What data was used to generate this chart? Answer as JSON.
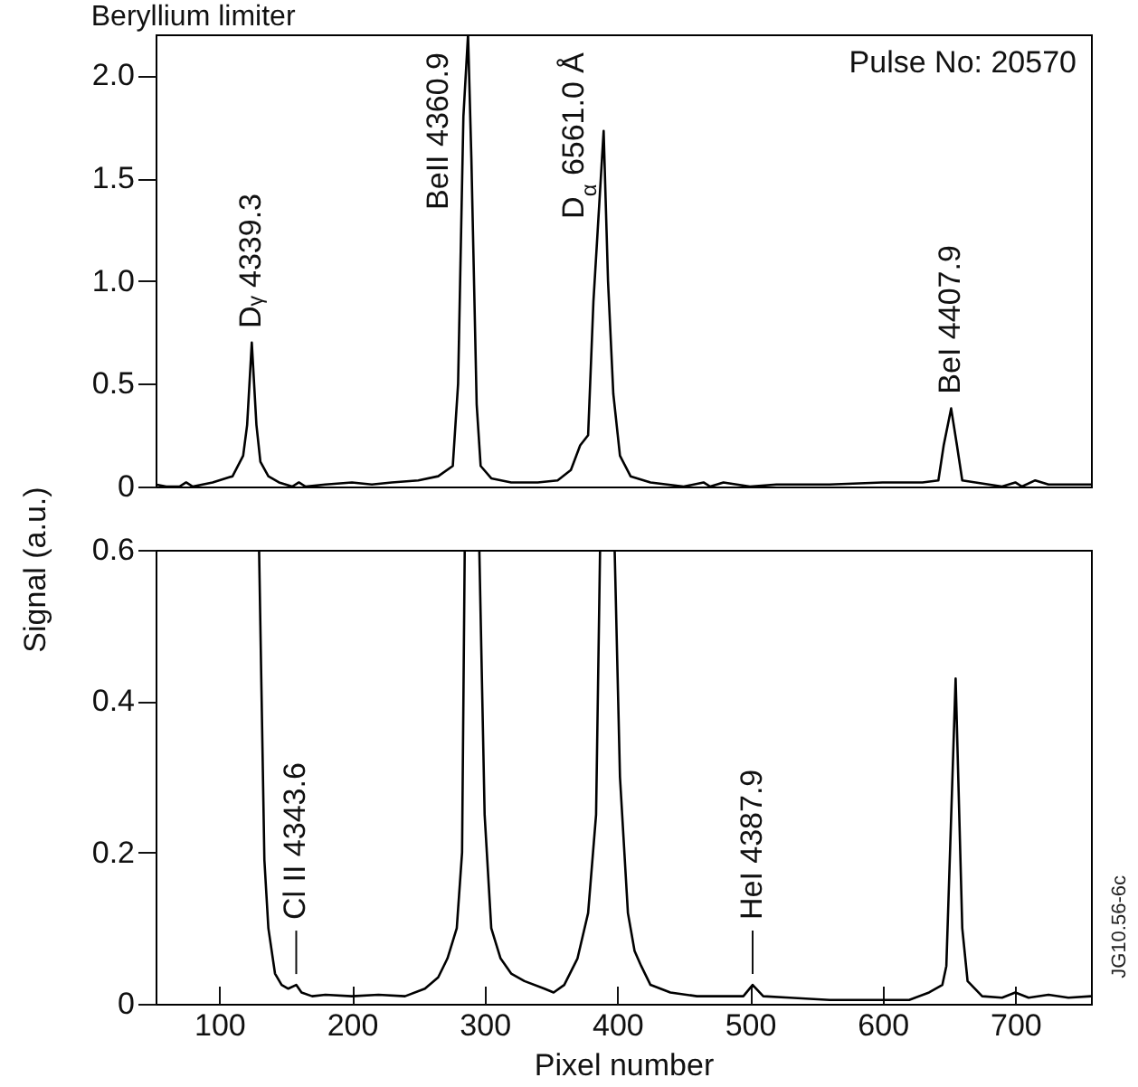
{
  "chart_data": [
    {
      "type": "line",
      "title": "Beryllium limiter",
      "ylabel": "Signal (a.u.)",
      "xlim": [
        52,
        757
      ],
      "ylim": [
        0,
        2.2
      ],
      "yticks": [
        0,
        0.5,
        {
          "value": 1,
          "label": "1.0"
        },
        1.5,
        {
          "value": 2,
          "label": "2.0"
        }
      ],
      "tick_labels": "y",
      "grid": false,
      "series": [
        {
          "color": "#000000",
          "x": [
            52,
            60,
            70,
            75,
            80,
            95,
            110,
            118,
            121,
            124.5,
            128,
            131,
            137,
            145,
            155,
            160,
            165,
            180,
            200,
            215,
            230,
            250,
            265,
            276,
            280,
            284,
            287.5,
            290,
            294,
            297,
            305,
            320,
            340,
            355,
            365,
            372,
            378,
            382,
            389.7,
            393,
            397,
            402,
            410,
            425,
            450,
            465,
            470,
            480,
            500,
            520,
            560,
            600,
            630,
            642,
            646,
            651.6,
            656,
            660,
            670,
            690,
            700,
            705,
            715,
            725,
            740,
            757
          ],
          "values": [
            0.01,
            0.0,
            0.0,
            0.02,
            0.0,
            0.02,
            0.05,
            0.15,
            0.3,
            0.7,
            0.3,
            0.12,
            0.05,
            0.02,
            0.0,
            0.02,
            0.0,
            0.01,
            0.02,
            0.01,
            0.02,
            0.03,
            0.05,
            0.1,
            0.5,
            1.8,
            2.2,
            1.6,
            0.4,
            0.1,
            0.04,
            0.02,
            0.02,
            0.03,
            0.08,
            0.2,
            0.25,
            0.9,
            1.73,
            1.0,
            0.45,
            0.15,
            0.05,
            0.02,
            0.0,
            0.02,
            0.0,
            0.02,
            0.0,
            0.01,
            0.01,
            0.02,
            0.02,
            0.03,
            0.2,
            0.38,
            0.2,
            0.03,
            0.02,
            0.0,
            0.02,
            0.0,
            0.03,
            0.01,
            0.01,
            0.01
          ]
        }
      ],
      "annotations": [
        "Pulse No: 20570",
        {
          "text": "Dᵧ 4339.3",
          "x": 124.5,
          "y": 0.7
        },
        {
          "text": "BeII 4360.9",
          "x": 287.5,
          "y": 2.2
        },
        {
          "text": "D$_{α}$ 6561.0 Å",
          "x": 389.7,
          "y": 1.73
        },
        {
          "text": "BeI 4407.9",
          "x": 651.6,
          "y": 0.38
        }
      ]
    },
    {
      "type": "line",
      "xlabel": "Pixel number",
      "xlim": [
        52,
        757
      ],
      "ylim": [
        0,
        0.6
      ],
      "xticks": [
        100,
        200,
        300,
        400,
        500,
        600,
        700
      ],
      "yticks": [
        0,
        0.2,
        0.4,
        0.6
      ],
      "grid": false,
      "series": [
        {
          "color": "#000000",
          "x": [
            130,
            134,
            137,
            142,
            147,
            152,
            158,
            162,
            170,
            180,
            200,
            220,
            240,
            255,
            265,
            272,
            279,
            283,
            285,
            290,
            296,
            300,
            305,
            312,
            320,
            330,
            345,
            352,
            360,
            370,
            378,
            384,
            387,
            392,
            398,
            402,
            408,
            413,
            418,
            425,
            440,
            460,
            480,
            495,
            502,
            510,
            530,
            560,
            590,
            620,
            635,
            645,
            648,
            655,
            660,
            664,
            675,
            690,
            700,
            710,
            725,
            740,
            757
          ],
          "values": [
            0.6,
            0.19,
            0.1,
            0.04,
            0.025,
            0.02,
            0.025,
            0.015,
            0.01,
            0.012,
            0.01,
            0.012,
            0.01,
            0.02,
            0.035,
            0.06,
            0.1,
            0.2,
            0.6,
            null,
            0.6,
            0.25,
            0.1,
            0.06,
            0.04,
            0.03,
            0.02,
            0.015,
            0.025,
            0.06,
            0.12,
            0.25,
            0.6,
            null,
            0.6,
            0.3,
            0.12,
            0.07,
            0.05,
            0.025,
            0.015,
            0.01,
            0.01,
            0.01,
            0.025,
            0.01,
            0.008,
            0.005,
            0.005,
            0.005,
            0.015,
            0.025,
            0.05,
            0.43,
            0.1,
            0.03,
            0.01,
            0.008,
            0.015,
            0.008,
            0.012,
            0.008,
            0.01
          ]
        }
      ],
      "annotations": [
        "JG10.56-6c",
        {
          "text": "Cl II 4343.6",
          "x": 158,
          "y": 0.025
        },
        {
          "text": "HeI 4387.9",
          "x": 502,
          "y": 0.025
        }
      ]
    }
  ]
}
